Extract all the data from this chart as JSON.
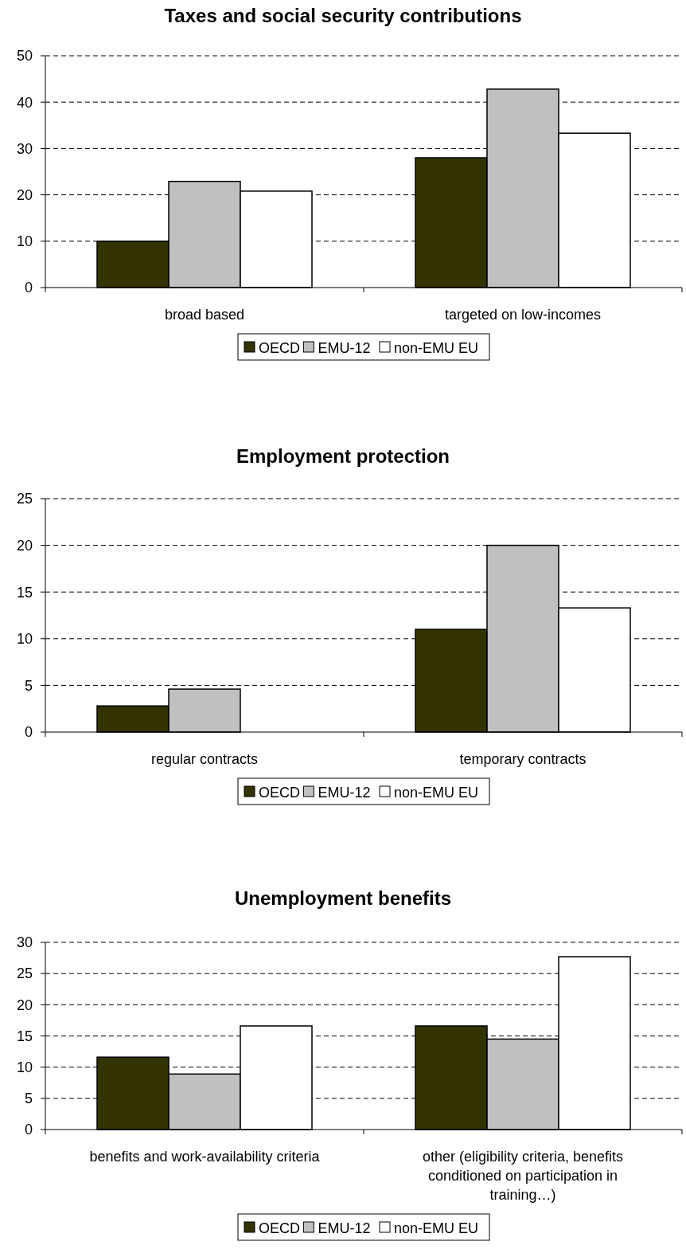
{
  "chart_data": [
    {
      "type": "bar",
      "title": "Taxes and social security contributions",
      "categories": [
        "broad based",
        "targeted on low-incomes"
      ],
      "series": [
        {
          "name": "OECD",
          "color": "#333300",
          "values": [
            10,
            28
          ]
        },
        {
          "name": "EMU-12",
          "color": "#c0c0c0",
          "values": [
            22.9,
            42.8
          ]
        },
        {
          "name": "non-EMU EU",
          "color": "#ffffff",
          "values": [
            20.8,
            33.3
          ]
        }
      ],
      "ylim": [
        0,
        50
      ],
      "yticks": [
        0,
        10,
        20,
        30,
        40,
        50
      ],
      "grid": "y",
      "legend": "bottom"
    },
    {
      "type": "bar",
      "title": "Employment protection",
      "categories": [
        "regular contracts",
        "temporary contracts"
      ],
      "series": [
        {
          "name": "OECD",
          "color": "#333300",
          "values": [
            2.8,
            11
          ]
        },
        {
          "name": "EMU-12",
          "color": "#c0c0c0",
          "values": [
            4.6,
            20
          ]
        },
        {
          "name": "non-EMU EU",
          "color": "#ffffff",
          "values": [
            0,
            13.3
          ]
        }
      ],
      "ylim": [
        0,
        25
      ],
      "yticks": [
        0,
        5,
        10,
        15,
        20,
        25
      ],
      "grid": "y",
      "legend": "bottom"
    },
    {
      "type": "bar",
      "title": "Unemployment benefits",
      "categories": [
        "benefits and work-availability criteria",
        "other (eligibility criteria, benefits conditioned on participation in training…)"
      ],
      "series": [
        {
          "name": "OECD",
          "color": "#333300",
          "values": [
            11.6,
            16.6
          ]
        },
        {
          "name": "EMU-12",
          "color": "#c0c0c0",
          "values": [
            8.9,
            14.5
          ]
        },
        {
          "name": "non-EMU EU",
          "color": "#ffffff",
          "values": [
            16.6,
            27.7
          ]
        }
      ],
      "ylim": [
        0,
        30
      ],
      "yticks": [
        0,
        5,
        10,
        15,
        20,
        25,
        30
      ],
      "grid": "y",
      "legend": "bottom"
    }
  ]
}
